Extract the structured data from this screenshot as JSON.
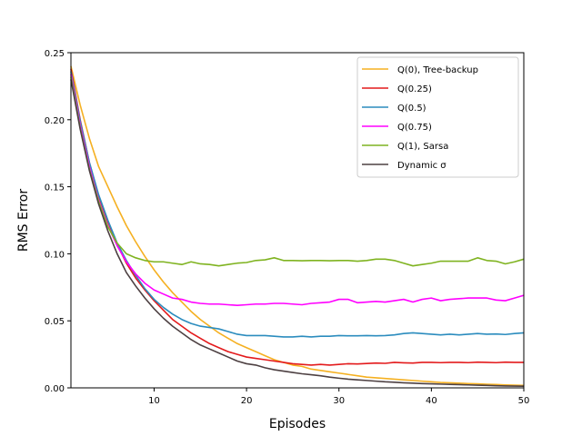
{
  "chart_data": {
    "type": "line",
    "title": "",
    "xlabel": "Episodes",
    "ylabel": "RMS Error",
    "xlim": [
      1,
      50
    ],
    "ylim": [
      0.0,
      0.25
    ],
    "xticks": [
      10,
      20,
      30,
      40,
      50
    ],
    "yticks": [
      0.0,
      0.05,
      0.1,
      0.15,
      0.2,
      0.25
    ],
    "xtick_labels": [
      "10",
      "20",
      "30",
      "40",
      "50"
    ],
    "ytick_labels": [
      "0.00",
      "0.05",
      "0.10",
      "0.15",
      "0.20",
      "0.25"
    ],
    "grid": false,
    "legend_position": "top-right",
    "x": [
      1,
      2,
      3,
      4,
      5,
      6,
      7,
      8,
      9,
      10,
      11,
      12,
      13,
      14,
      15,
      16,
      17,
      18,
      19,
      20,
      21,
      22,
      23,
      24,
      25,
      26,
      27,
      28,
      29,
      30,
      31,
      32,
      33,
      34,
      35,
      36,
      37,
      38,
      39,
      40,
      41,
      42,
      43,
      44,
      45,
      46,
      47,
      48,
      49,
      50
    ],
    "series": [
      {
        "name": "Q(0), Tree-backup",
        "color": "#f5b021",
        "values": [
          0.24,
          0.211,
          0.186,
          0.165,
          0.15,
          0.135,
          0.121,
          0.109,
          0.098,
          0.088,
          0.079,
          0.071,
          0.064,
          0.057,
          0.051,
          0.046,
          0.041,
          0.037,
          0.033,
          0.03,
          0.027,
          0.024,
          0.021,
          0.019,
          0.017,
          0.016,
          0.014,
          0.013,
          0.012,
          0.011,
          0.01,
          0.009,
          0.008,
          0.0075,
          0.007,
          0.0065,
          0.006,
          0.0055,
          0.005,
          0.0045,
          0.004,
          0.0038,
          0.0035,
          0.0032,
          0.003,
          0.0027,
          0.0025,
          0.0022,
          0.002,
          0.0018
        ]
      },
      {
        "name": "Q(0.25)",
        "color": "#e31a1c",
        "values": [
          0.238,
          0.2,
          0.168,
          0.143,
          0.124,
          0.107,
          0.093,
          0.082,
          0.073,
          0.065,
          0.058,
          0.051,
          0.046,
          0.041,
          0.037,
          0.033,
          0.03,
          0.027,
          0.025,
          0.023,
          0.022,
          0.021,
          0.02,
          0.019,
          0.018,
          0.0175,
          0.017,
          0.0175,
          0.017,
          0.0175,
          0.018,
          0.0178,
          0.0182,
          0.0185,
          0.0183,
          0.019,
          0.0187,
          0.0185,
          0.019,
          0.019,
          0.0188,
          0.019,
          0.019,
          0.0188,
          0.0192,
          0.019,
          0.0188,
          0.0192,
          0.019,
          0.019
        ]
      },
      {
        "name": "Q(0.5)",
        "color": "#2b8cbe",
        "values": [
          0.236,
          0.199,
          0.168,
          0.144,
          0.125,
          0.108,
          0.095,
          0.084,
          0.074,
          0.066,
          0.06,
          0.055,
          0.051,
          0.048,
          0.046,
          0.045,
          0.044,
          0.042,
          0.04,
          0.039,
          0.039,
          0.039,
          0.0385,
          0.038,
          0.038,
          0.0385,
          0.038,
          0.0385,
          0.0385,
          0.039,
          0.0388,
          0.0388,
          0.039,
          0.0388,
          0.039,
          0.0395,
          0.0405,
          0.041,
          0.0405,
          0.04,
          0.0395,
          0.04,
          0.0395,
          0.04,
          0.0405,
          0.04,
          0.0402,
          0.0398,
          0.0405,
          0.041
        ]
      },
      {
        "name": "Q(0.75)",
        "color": "#ff00ff",
        "values": [
          0.234,
          0.196,
          0.165,
          0.14,
          0.121,
          0.106,
          0.094,
          0.085,
          0.078,
          0.073,
          0.07,
          0.067,
          0.066,
          0.064,
          0.063,
          0.0625,
          0.0625,
          0.062,
          0.0615,
          0.062,
          0.0625,
          0.0625,
          0.063,
          0.063,
          0.0625,
          0.062,
          0.063,
          0.0635,
          0.064,
          0.066,
          0.066,
          0.0635,
          0.064,
          0.0645,
          0.064,
          0.065,
          0.066,
          0.064,
          0.066,
          0.067,
          0.065,
          0.066,
          0.0665,
          0.067,
          0.067,
          0.067,
          0.0655,
          0.065,
          0.067,
          0.069
        ]
      },
      {
        "name": "Q(1), Sarsa",
        "color": "#7fb320",
        "values": [
          0.232,
          0.194,
          0.163,
          0.139,
          0.12,
          0.108,
          0.1,
          0.097,
          0.095,
          0.094,
          0.094,
          0.093,
          0.092,
          0.094,
          0.0925,
          0.092,
          0.091,
          0.092,
          0.093,
          0.0935,
          0.095,
          0.0955,
          0.097,
          0.095,
          0.095,
          0.0948,
          0.095,
          0.095,
          0.0948,
          0.095,
          0.095,
          0.0945,
          0.095,
          0.096,
          0.096,
          0.095,
          0.093,
          0.091,
          0.092,
          0.093,
          0.0945,
          0.0945,
          0.0945,
          0.0945,
          0.097,
          0.095,
          0.0945,
          0.0925,
          0.094,
          0.096
        ]
      },
      {
        "name": "Dynamic σ",
        "color": "#4d4042",
        "values": [
          0.23,
          0.193,
          0.162,
          0.137,
          0.117,
          0.1,
          0.086,
          0.076,
          0.067,
          0.059,
          0.052,
          0.046,
          0.041,
          0.036,
          0.032,
          0.029,
          0.026,
          0.023,
          0.02,
          0.018,
          0.017,
          0.015,
          0.0135,
          0.0125,
          0.0115,
          0.0105,
          0.0098,
          0.009,
          0.008,
          0.0072,
          0.0065,
          0.006,
          0.0055,
          0.005,
          0.0045,
          0.0042,
          0.0038,
          0.0035,
          0.0032,
          0.003,
          0.0028,
          0.0026,
          0.0024,
          0.0022,
          0.002,
          0.0018,
          0.0016,
          0.0014,
          0.0013,
          0.0012
        ]
      }
    ]
  }
}
